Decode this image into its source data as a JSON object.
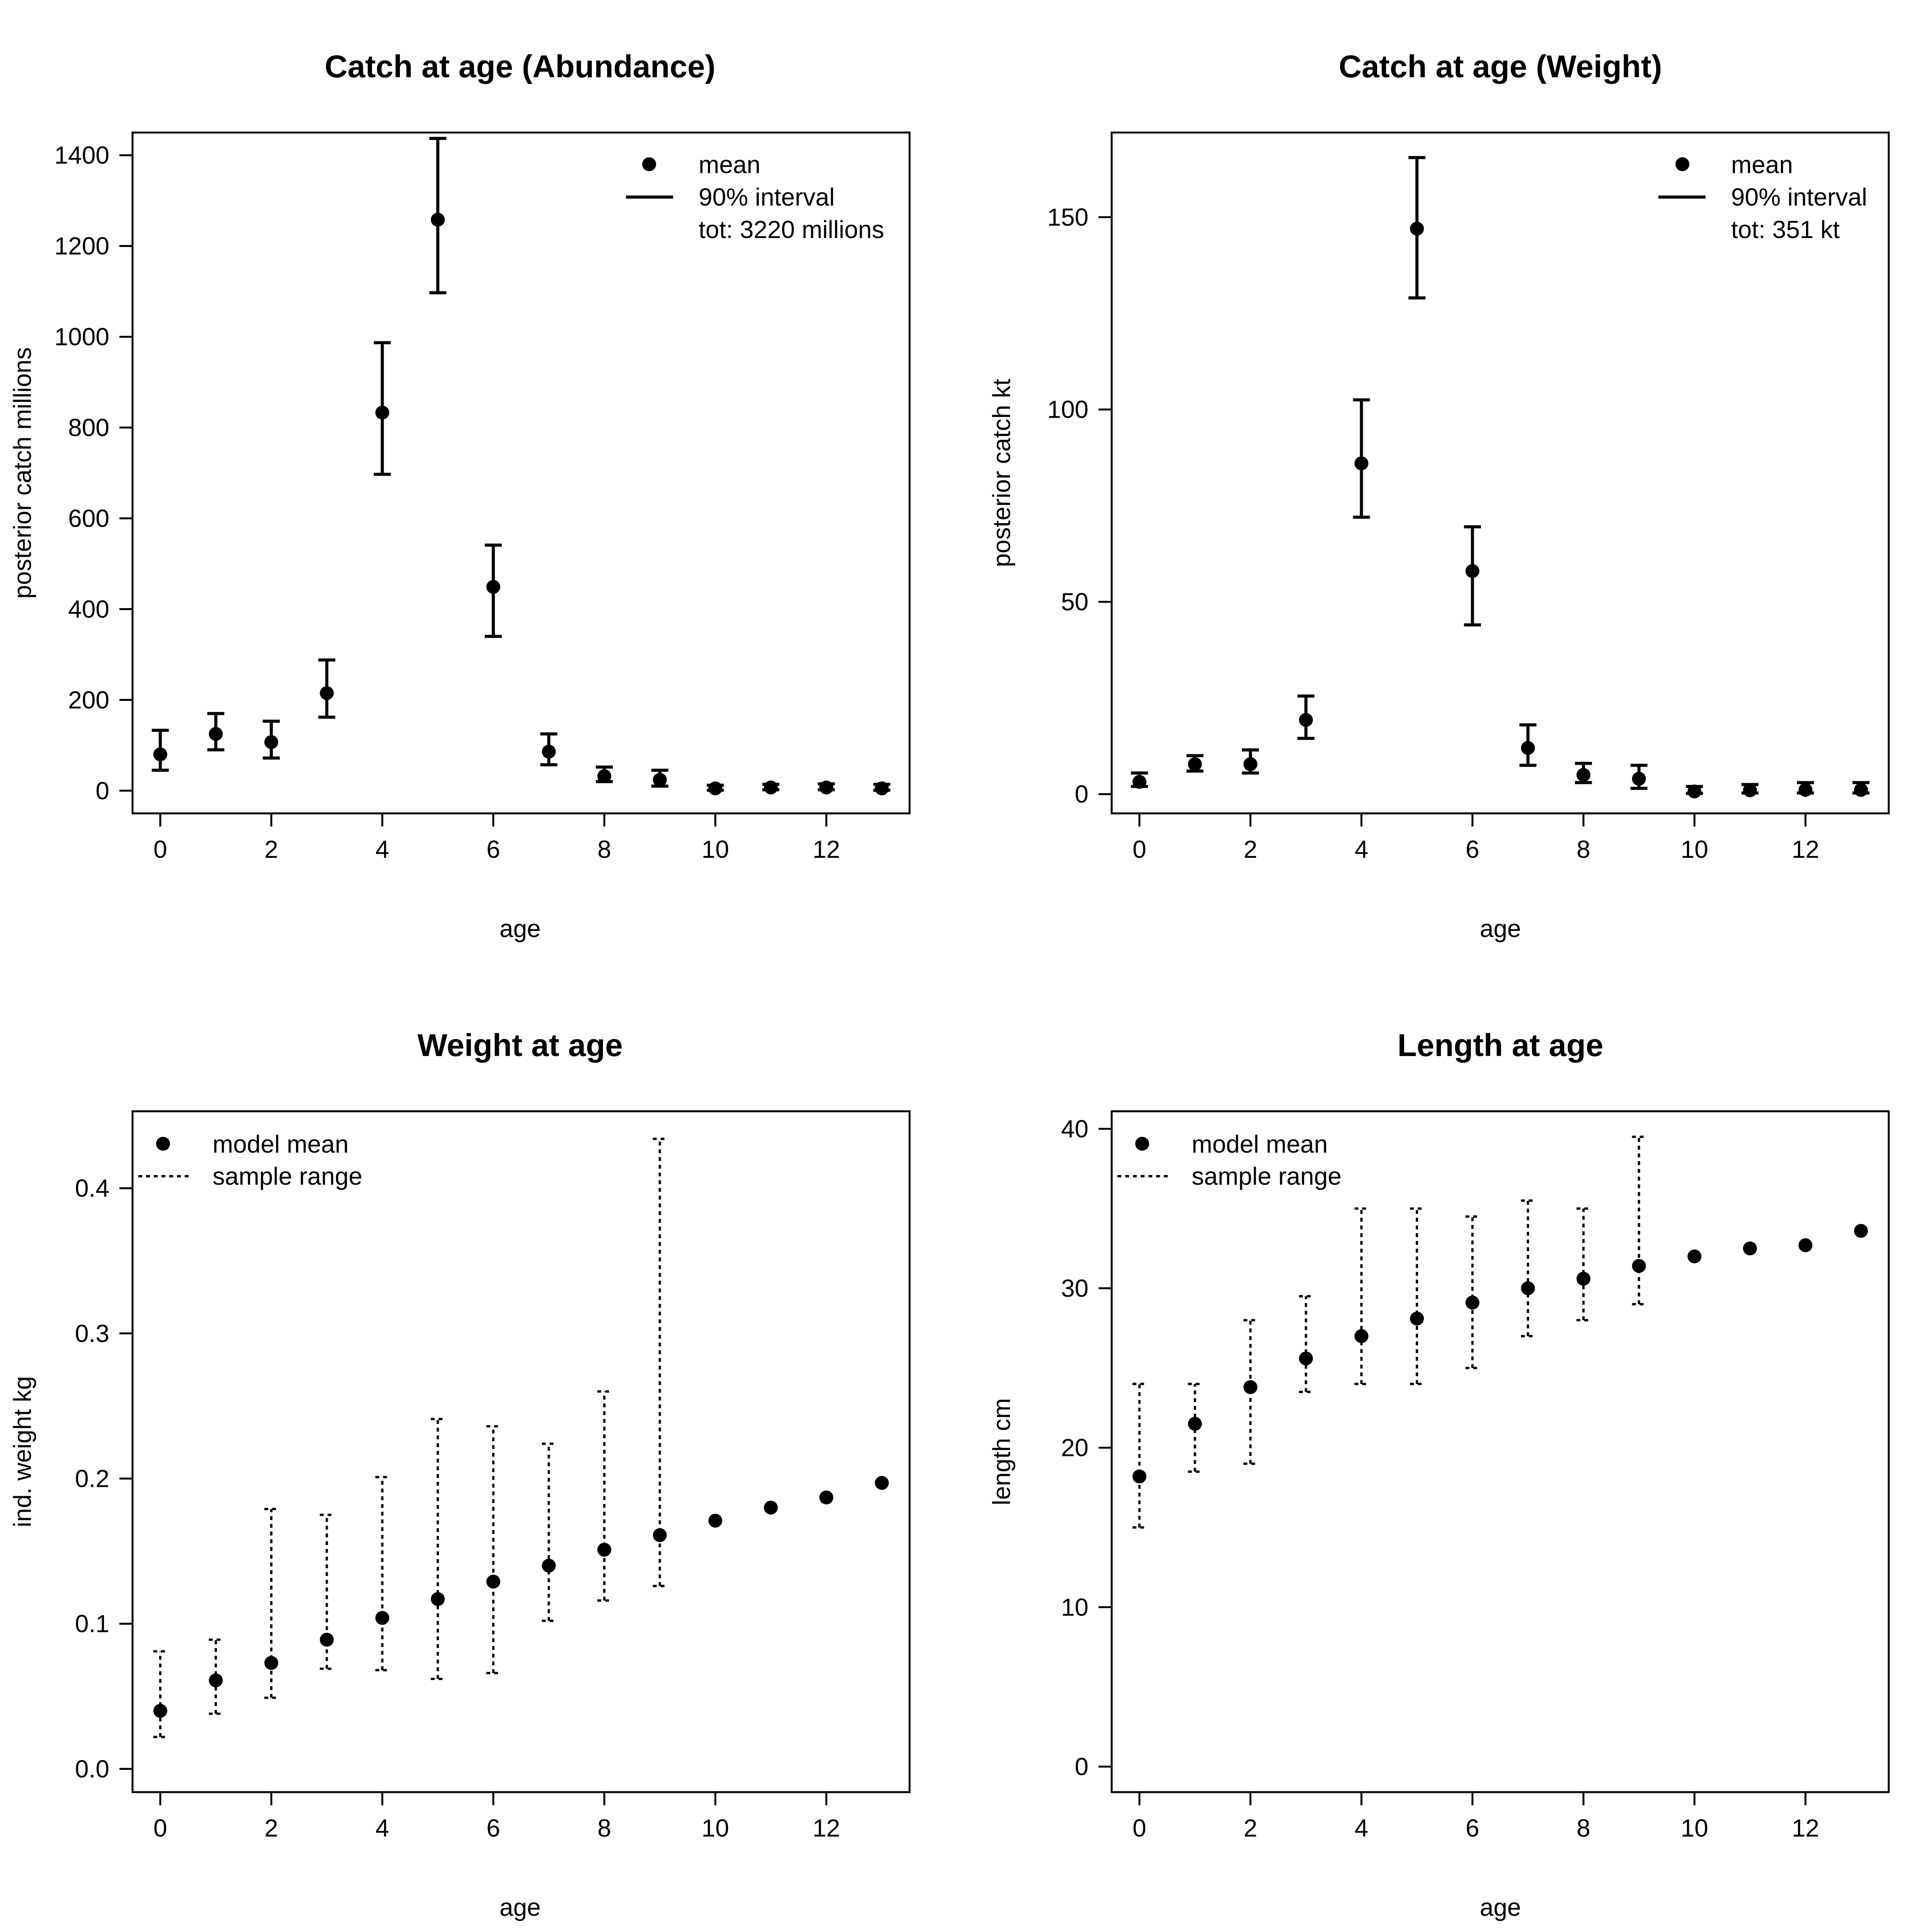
{
  "chart_data": [
    {
      "type": "scatter",
      "title": "Catch at age (Abundance)",
      "xlabel": "age",
      "ylabel": "posterior catch millions",
      "xlim": [
        -0.5,
        13.5
      ],
      "ylim": [
        -50,
        1450
      ],
      "xticks": [
        0,
        2,
        4,
        6,
        8,
        10,
        12
      ],
      "yticks": [
        0,
        200,
        400,
        600,
        800,
        1000,
        1200,
        1400
      ],
      "interval_style": "solid",
      "legend": {
        "position": "top-right",
        "entries": [
          "mean",
          "90% interval",
          "tot: 3220 millions"
        ]
      },
      "x": [
        0,
        1,
        2,
        3,
        4,
        5,
        6,
        7,
        8,
        9,
        10,
        11,
        12,
        13
      ],
      "mean": [
        80,
        125,
        107,
        215,
        833,
        1258,
        449,
        86,
        32,
        24,
        5,
        7,
        7,
        5
      ],
      "lower": [
        45,
        90,
        72,
        162,
        697,
        1097,
        340,
        57,
        20,
        10,
        1,
        2,
        2,
        1
      ],
      "upper": [
        133,
        170,
        153,
        288,
        987,
        1437,
        541,
        125,
        52,
        45,
        12,
        14,
        15,
        14
      ]
    },
    {
      "type": "scatter",
      "title": "Catch at age (Weight)",
      "xlabel": "age",
      "ylabel": "posterior catch kt",
      "xlim": [
        -0.5,
        13.5
      ],
      "ylim": [
        -5,
        172
      ],
      "xticks": [
        0,
        2,
        4,
        6,
        8,
        10,
        12
      ],
      "yticks": [
        0,
        50,
        100,
        150
      ],
      "interval_style": "solid",
      "legend": {
        "position": "top-right",
        "entries": [
          "mean",
          "90% interval",
          "tot: 351 kt"
        ]
      },
      "x": [
        0,
        1,
        2,
        3,
        4,
        5,
        6,
        7,
        8,
        9,
        10,
        11,
        12,
        13
      ],
      "mean": [
        3.2,
        7.8,
        7.8,
        19.3,
        86,
        147,
        58,
        12,
        5,
        4,
        0.7,
        1,
        1.1,
        1.1
      ],
      "lower": [
        2,
        6,
        5.5,
        14.5,
        72,
        129,
        44,
        7.5,
        3,
        1.5,
        0.2,
        0.3,
        0.3,
        0.3
      ],
      "upper": [
        5.5,
        10,
        11.5,
        25.5,
        102.5,
        165.5,
        69.5,
        18,
        8,
        7.5,
        2,
        2.5,
        3,
        3
      ]
    },
    {
      "type": "scatter",
      "title": "Weight at age",
      "xlabel": "age",
      "ylabel": "ind. weight kg",
      "xlim": [
        -0.5,
        13.5
      ],
      "ylim": [
        -0.016,
        0.453
      ],
      "xticks": [
        0,
        2,
        4,
        6,
        8,
        10,
        12
      ],
      "yticks": [
        0.0,
        0.1,
        0.2,
        0.3,
        0.4
      ],
      "ytick_labels": [
        "0.0",
        "0.1",
        "0.2",
        "0.3",
        "0.4"
      ],
      "interval_style": "dotted",
      "legend": {
        "position": "top-left",
        "entries": [
          "model mean",
          "sample range"
        ]
      },
      "x": [
        0,
        1,
        2,
        3,
        4,
        5,
        6,
        7,
        8,
        9,
        10,
        11,
        12,
        13
      ],
      "mean": [
        0.04,
        0.061,
        0.073,
        0.089,
        0.104,
        0.117,
        0.129,
        0.14,
        0.151,
        0.161,
        0.171,
        0.18,
        0.187,
        0.197
      ],
      "lower": [
        0.022,
        0.038,
        0.049,
        0.069,
        0.068,
        0.062,
        0.066,
        0.102,
        0.116,
        0.126,
        null,
        null,
        null,
        null
      ],
      "upper": [
        0.081,
        0.089,
        0.179,
        0.175,
        0.201,
        0.241,
        0.236,
        0.224,
        0.26,
        0.434,
        null,
        null,
        null,
        null
      ]
    },
    {
      "type": "scatter",
      "title": "Length at age",
      "xlabel": "age",
      "ylabel": "length cm",
      "xlim": [
        -0.5,
        13.5
      ],
      "ylim": [
        -1.6,
        41.1
      ],
      "xticks": [
        0,
        2,
        4,
        6,
        8,
        10,
        12
      ],
      "yticks": [
        0,
        10,
        20,
        30,
        40
      ],
      "interval_style": "dotted",
      "legend": {
        "position": "top-left",
        "entries": [
          "model mean",
          "sample range"
        ]
      },
      "x": [
        0,
        1,
        2,
        3,
        4,
        5,
        6,
        7,
        8,
        9,
        10,
        11,
        12,
        13
      ],
      "mean": [
        18.2,
        21.5,
        23.8,
        25.6,
        27,
        28.1,
        29.1,
        30,
        30.6,
        31.4,
        32,
        32.5,
        32.7,
        33.6
      ],
      "lower": [
        15,
        18.5,
        19,
        23.5,
        24,
        24,
        25,
        27,
        28,
        29,
        null,
        null,
        null,
        null
      ],
      "upper": [
        24,
        24,
        28,
        29.5,
        35,
        35,
        34.5,
        35.5,
        35,
        39.5,
        null,
        null,
        null,
        null
      ]
    }
  ]
}
